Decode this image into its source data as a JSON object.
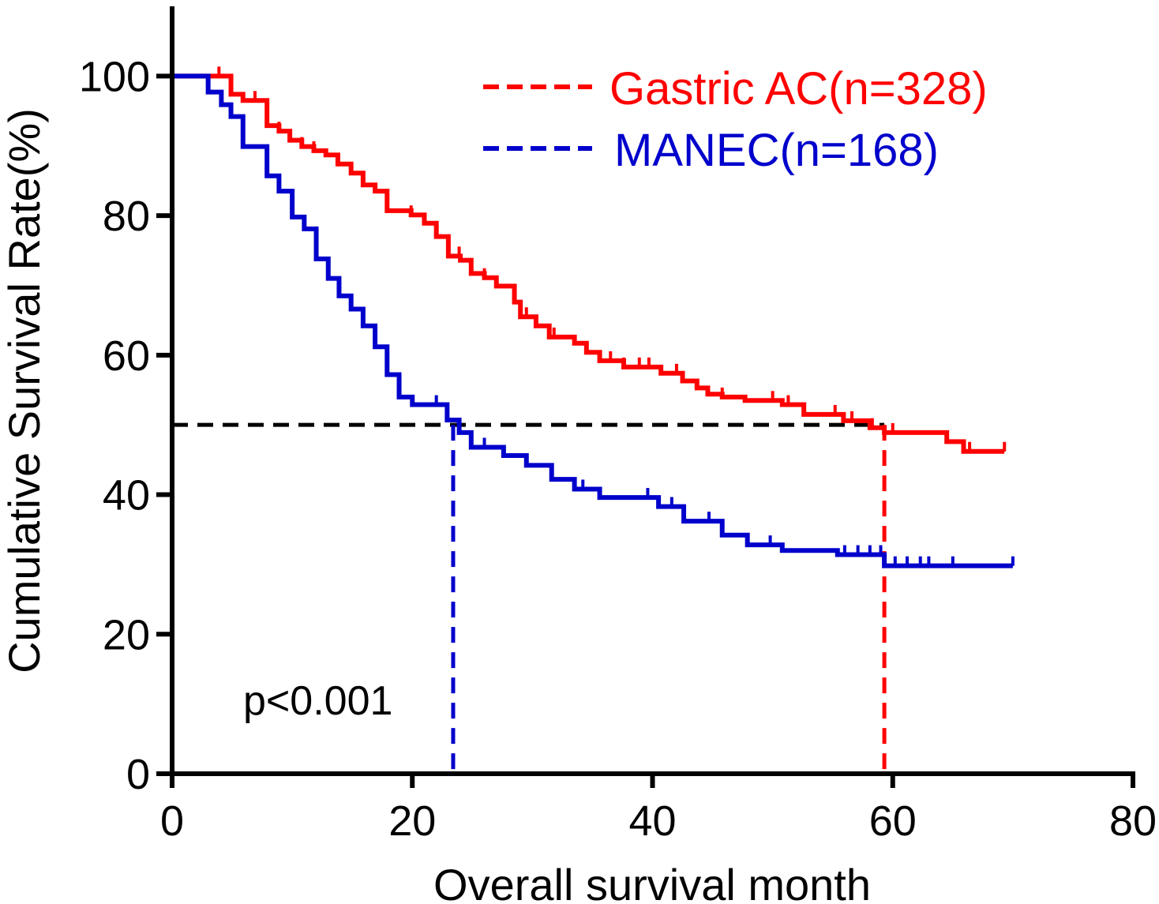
{
  "chart_data": {
    "type": "line",
    "subtype": "kaplan-meier",
    "title": "",
    "xlabel": "Overall survival month",
    "ylabel": "Cumulative Survival Rate(%)",
    "xlim": [
      0,
      80
    ],
    "ylim": [
      0,
      110
    ],
    "xticks": [
      0,
      20,
      40,
      60,
      80
    ],
    "yticks": [
      0,
      20,
      40,
      60,
      80,
      100
    ],
    "grid": false,
    "legend_position": "top-right",
    "annotation": "p<0.001",
    "median_line": {
      "y": 50,
      "color": "#000000"
    },
    "series": [
      {
        "name": "Gastric AC(n=328)",
        "color": "#ff0000",
        "median": 59.3,
        "end": 69.3,
        "steps": [
          [
            0,
            100
          ],
          [
            4.9,
            97.4
          ],
          [
            5.9,
            96.5
          ],
          [
            7.9,
            92.9
          ],
          [
            8.9,
            92.1
          ],
          [
            9.8,
            90.8
          ],
          [
            10.8,
            89.9
          ],
          [
            11.8,
            89.3
          ],
          [
            12.8,
            88.7
          ],
          [
            13.8,
            87.4
          ],
          [
            14.9,
            86.1
          ],
          [
            15.9,
            84.4
          ],
          [
            16.9,
            83.5
          ],
          [
            17.9,
            80.7
          ],
          [
            19.9,
            80.1
          ],
          [
            21,
            78.9
          ],
          [
            22,
            77
          ],
          [
            23,
            74.2
          ],
          [
            24,
            73.6
          ],
          [
            24.9,
            71.7
          ],
          [
            26,
            71.1
          ],
          [
            27,
            69.9
          ],
          [
            28.5,
            67.6
          ],
          [
            29,
            65.5
          ],
          [
            30.3,
            64.2
          ],
          [
            31.4,
            62.6
          ],
          [
            33.5,
            61.7
          ],
          [
            34.5,
            60.4
          ],
          [
            35.6,
            59.2
          ],
          [
            37.6,
            58.3
          ],
          [
            40.7,
            57.4
          ],
          [
            42.5,
            56.3
          ],
          [
            43.7,
            55.3
          ],
          [
            44.6,
            54.4
          ],
          [
            45.8,
            54
          ],
          [
            47.7,
            53.5
          ],
          [
            50.8,
            52.9
          ],
          [
            52.6,
            51.5
          ],
          [
            55.9,
            50.6
          ],
          [
            58.1,
            49.6
          ],
          [
            59.3,
            48.9
          ],
          [
            64.5,
            47.6
          ],
          [
            65.9,
            46.2
          ]
        ],
        "censored": [
          3.9,
          6.9,
          8.9,
          10.8,
          11.8,
          19.9,
          21,
          23.9,
          26,
          29.5,
          31.8,
          36.5,
          37.6,
          38.9,
          39.7,
          42,
          45.8,
          50,
          51.3,
          55.2,
          56.6,
          58.3,
          60,
          66.4,
          69.3
        ]
      },
      {
        "name": "MANEC(n=168)",
        "color": "#0000cc",
        "median": 23.4,
        "end": 70,
        "steps": [
          [
            0,
            100
          ],
          [
            3,
            97.7
          ],
          [
            4.1,
            95.9
          ],
          [
            4.9,
            94.2
          ],
          [
            5.9,
            89.9
          ],
          [
            7.9,
            85.7
          ],
          [
            8.9,
            83.5
          ],
          [
            10,
            79.8
          ],
          [
            11,
            78.1
          ],
          [
            12,
            73.8
          ],
          [
            13,
            71
          ],
          [
            13.9,
            68.5
          ],
          [
            14.9,
            66.6
          ],
          [
            15.9,
            64.2
          ],
          [
            16.9,
            61.2
          ],
          [
            17.9,
            57.2
          ],
          [
            18.9,
            54
          ],
          [
            20,
            52.9
          ],
          [
            22.9,
            50.7
          ],
          [
            23.9,
            48.9
          ],
          [
            24.9,
            46.8
          ],
          [
            27.6,
            45.6
          ],
          [
            29.5,
            44.2
          ],
          [
            31.6,
            42.2
          ],
          [
            33.5,
            40.8
          ],
          [
            35.6,
            39.6
          ],
          [
            40.5,
            38.3
          ],
          [
            42.6,
            36.2
          ],
          [
            45.8,
            34.2
          ],
          [
            47.9,
            32.8
          ],
          [
            50.8,
            32
          ],
          [
            55.4,
            31.4
          ],
          [
            59.3,
            29.8
          ]
        ],
        "censored": [
          22,
          26,
          34.2,
          39.6,
          41.6,
          44.7,
          49.8,
          56,
          57.1,
          58.1,
          59,
          60.2,
          61.2,
          62.3,
          63,
          65,
          70
        ]
      }
    ]
  }
}
